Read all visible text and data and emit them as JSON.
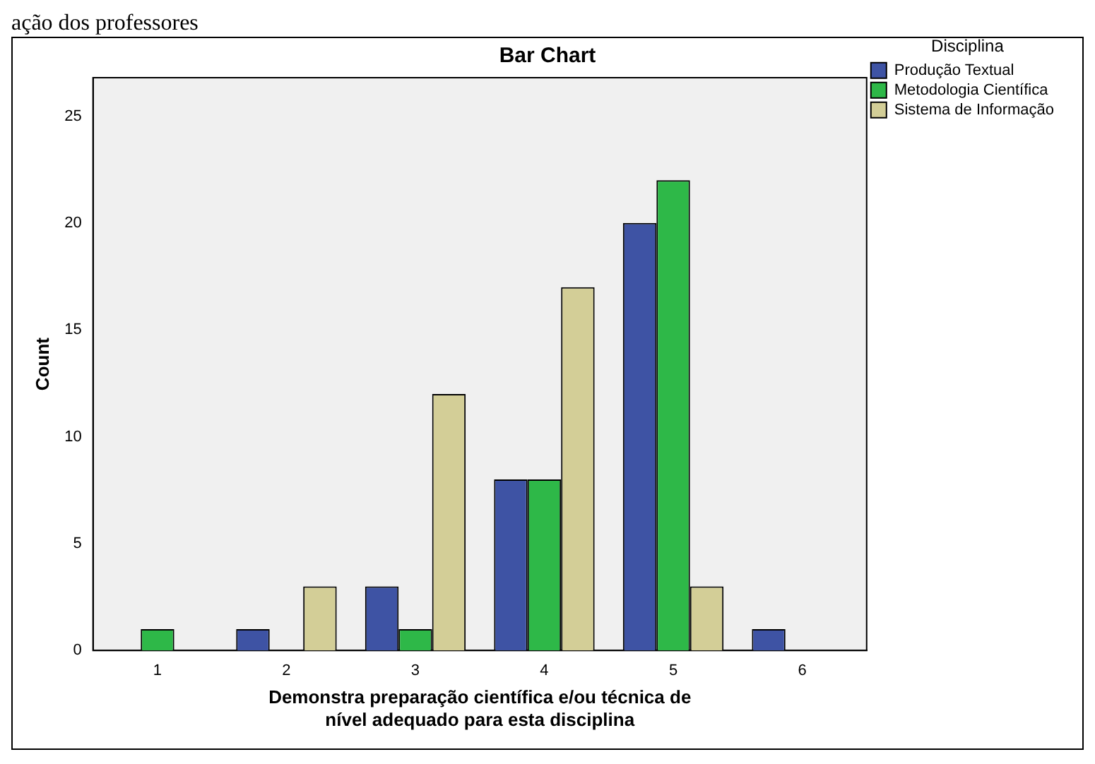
{
  "chart_data": {
    "type": "bar",
    "title": "Bar Chart",
    "xlabel": "Demonstra preparação científica e/ou técnica de\nnível adequado para esta disciplina",
    "ylabel": "Count",
    "legend_title": "Disciplina",
    "annotations": [
      "ação dos professores"
    ],
    "categories": [
      "1",
      "2",
      "3",
      "4",
      "5",
      "6"
    ],
    "series": [
      {
        "name": "Produção Textual",
        "color": "#3e53a4",
        "values": [
          0,
          1,
          3,
          8,
          20,
          1
        ]
      },
      {
        "name": "Metodologia Científica",
        "color": "#2eb848",
        "values": [
          1,
          0,
          1,
          8,
          22,
          0
        ]
      },
      {
        "name": "Sistema de Informação",
        "color": "#d3ce97",
        "values": [
          0,
          3,
          12,
          17,
          3,
          0
        ]
      }
    ],
    "ylim": [
      0,
      26.8
    ],
    "yticks": [
      0,
      5,
      10,
      15,
      20,
      25
    ],
    "grid": false,
    "legend": "top right"
  }
}
